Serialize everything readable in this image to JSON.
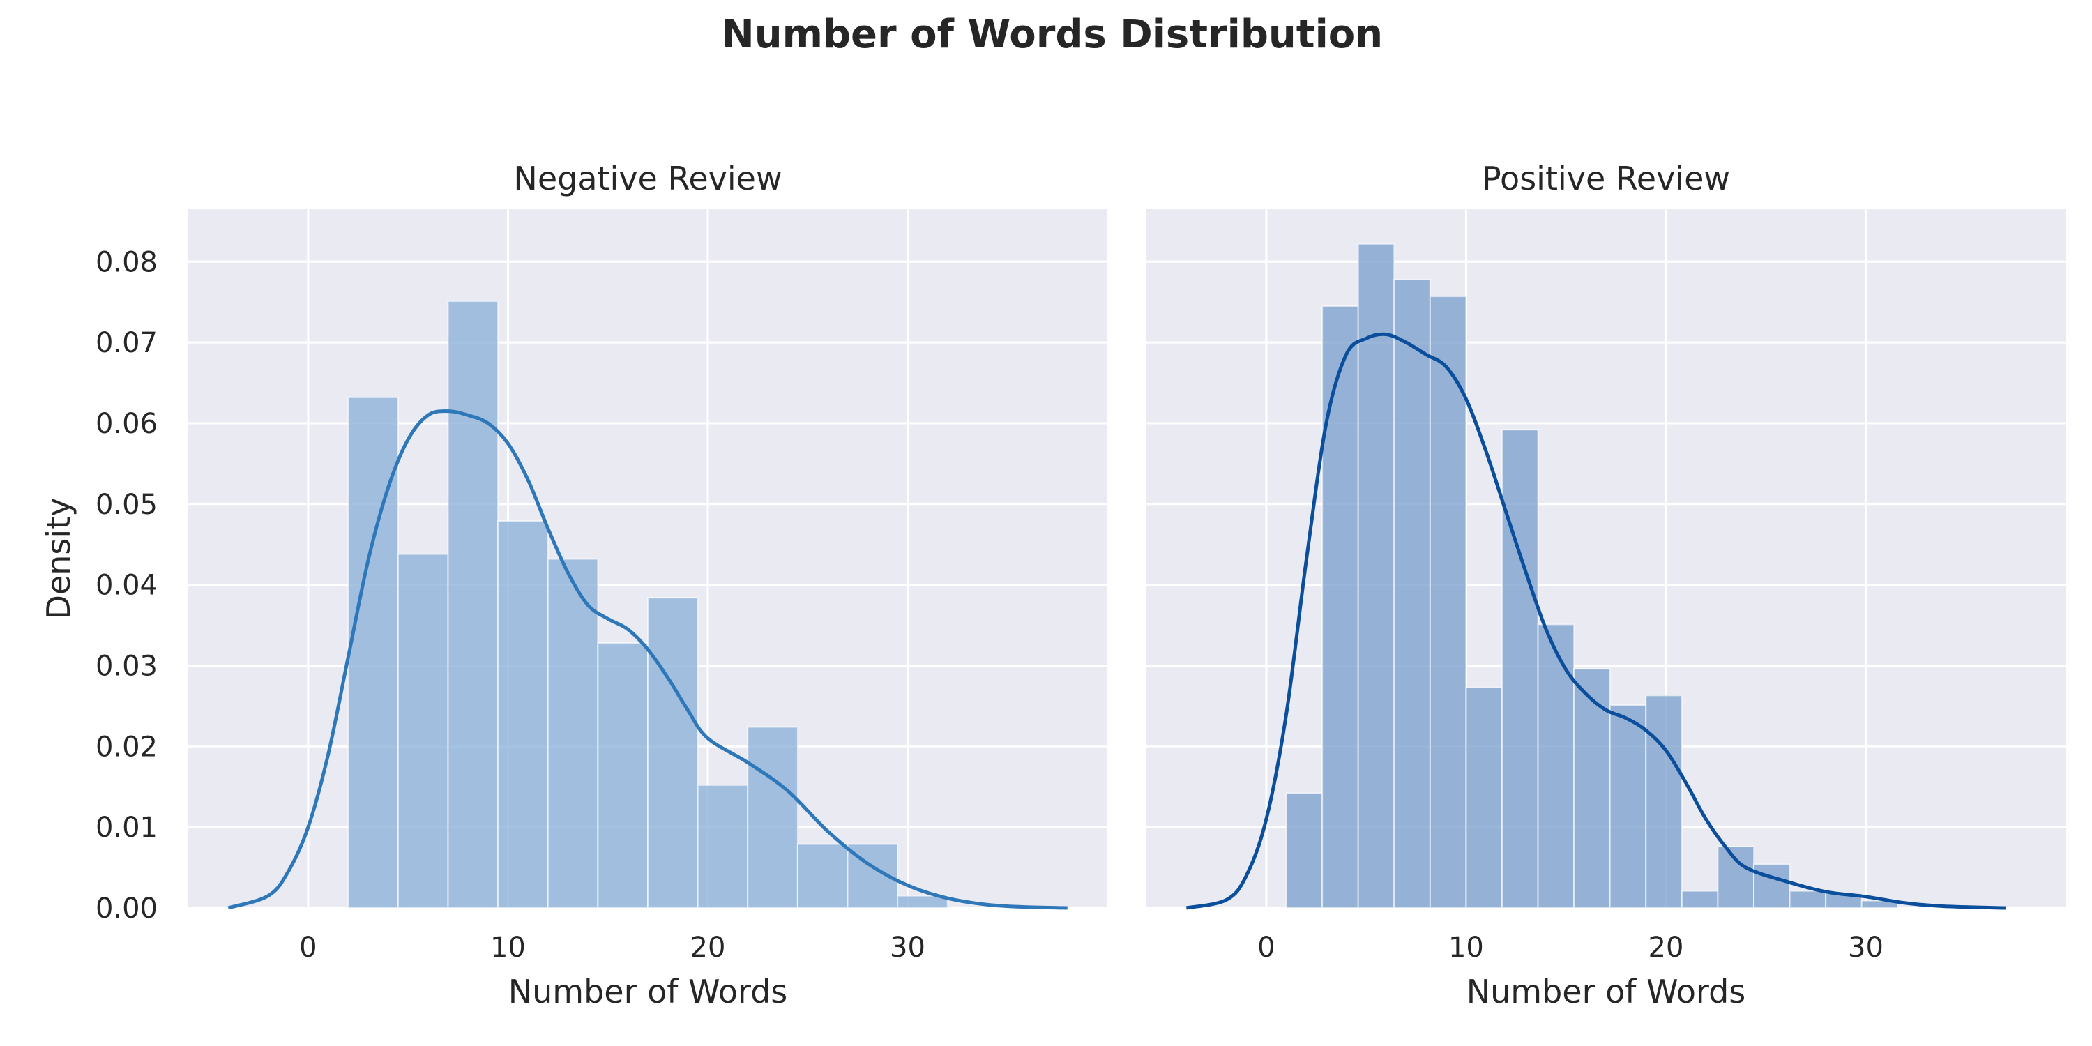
{
  "title": "Number of Words Distribution",
  "colors": {
    "panel_bg": "#EAEAF2",
    "grid": "#FFFFFF",
    "text": "#262626"
  },
  "chart_data": [
    {
      "type": "histogram",
      "title": "Negative Review",
      "xlabel": "Number of Words",
      "ylabel": "Density",
      "xlim": [
        -6,
        40
      ],
      "ylim": [
        0,
        0.0865
      ],
      "xticks": [
        "0",
        "10",
        "20",
        "30"
      ],
      "xtick_values": [
        0,
        10,
        20,
        30
      ],
      "yticks": [
        "0.00",
        "0.01",
        "0.02",
        "0.03",
        "0.04",
        "0.05",
        "0.06",
        "0.07",
        "0.08"
      ],
      "ytick_values": [
        0,
        0.01,
        0.02,
        0.03,
        0.04,
        0.05,
        0.06,
        0.07,
        0.08
      ],
      "grid": true,
      "bar_color": "#8FB3D9",
      "kde_color": "#2E78BA",
      "bins": {
        "edges": [
          2,
          4.5,
          7,
          9.5,
          12,
          14.5,
          17,
          19.5,
          22,
          24.5,
          27,
          29.5,
          32
        ],
        "values": [
          0.0632,
          0.0438,
          0.0751,
          0.0479,
          0.0432,
          0.0328,
          0.0384,
          0.0152,
          0.0224,
          0.0079,
          0.0079,
          0.0015
        ]
      },
      "kde": {
        "x": [
          -4,
          -2,
          -1,
          0,
          1,
          2,
          3,
          4,
          5,
          6,
          7,
          8,
          9,
          10,
          11,
          12,
          13,
          14,
          15,
          16,
          17,
          18,
          19,
          20,
          22,
          24,
          26,
          28,
          30,
          32,
          34,
          36,
          38
        ],
        "y": [
          0.0,
          0.0015,
          0.0045,
          0.01,
          0.019,
          0.031,
          0.043,
          0.052,
          0.058,
          0.061,
          0.0615,
          0.061,
          0.06,
          0.0575,
          0.053,
          0.047,
          0.0415,
          0.0375,
          0.0358,
          0.0345,
          0.032,
          0.0285,
          0.0245,
          0.021,
          0.018,
          0.0145,
          0.0095,
          0.0055,
          0.0028,
          0.0012,
          0.0004,
          0.0001,
          0.0
        ]
      }
    },
    {
      "type": "histogram",
      "title": "Positive Review",
      "xlabel": "Number of Words",
      "ylabel": "",
      "xlim": [
        -6,
        40
      ],
      "ylim": [
        0,
        0.0865
      ],
      "xticks": [
        "0",
        "10",
        "20",
        "30"
      ],
      "xtick_values": [
        0,
        10,
        20,
        30
      ],
      "grid": true,
      "bar_color": "#7FA3CE",
      "kde_color": "#0B4F9C",
      "bins": {
        "edges": [
          1,
          2.8,
          4.6,
          6.4,
          8.2,
          10,
          11.8,
          13.6,
          15.4,
          17.2,
          19,
          20.8,
          22.6,
          24.4,
          26.2,
          28,
          29.8,
          31.6
        ],
        "values": [
          0.0142,
          0.0745,
          0.0822,
          0.0778,
          0.0757,
          0.0273,
          0.0592,
          0.0351,
          0.0296,
          0.0251,
          0.0263,
          0.0021,
          0.0076,
          0.0054,
          0.0021,
          0.0018,
          0.0009
        ]
      },
      "kde": {
        "x": [
          -4,
          -2,
          -1,
          0,
          1,
          2,
          3,
          4,
          5,
          6,
          7,
          8,
          9,
          10,
          11,
          12,
          13,
          14,
          15,
          16,
          17,
          18,
          19,
          20,
          21,
          22,
          23,
          24,
          26,
          28,
          30,
          32,
          34,
          37
        ],
        "y": [
          0.0,
          0.001,
          0.004,
          0.011,
          0.024,
          0.043,
          0.06,
          0.0685,
          0.0705,
          0.071,
          0.07,
          0.0685,
          0.067,
          0.063,
          0.0565,
          0.049,
          0.0415,
          0.0345,
          0.0295,
          0.0265,
          0.0245,
          0.0235,
          0.022,
          0.0195,
          0.0155,
          0.011,
          0.0075,
          0.005,
          0.0033,
          0.002,
          0.0014,
          0.0006,
          0.0002,
          0.0
        ]
      }
    }
  ]
}
